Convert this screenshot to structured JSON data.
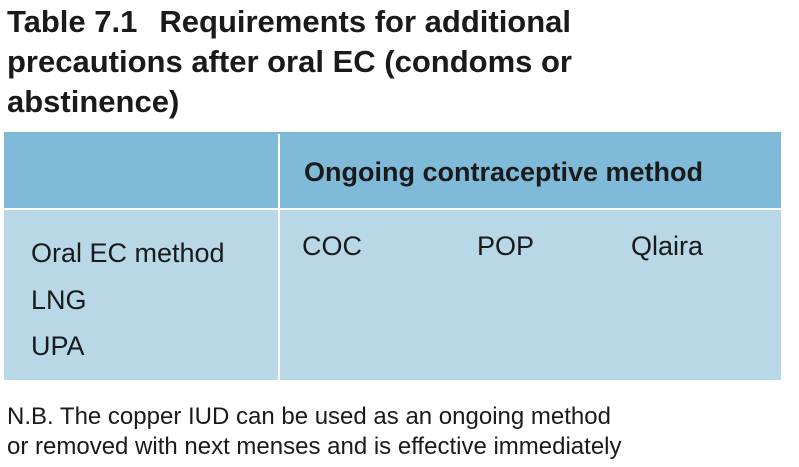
{
  "table": {
    "number": "Table 7.1",
    "title_lines": [
      "Requirements for additional",
      "precautions after oral EC (condoms or",
      "abstinence)"
    ],
    "header": "Ongoing contraceptive method",
    "row_header": "Oral EC method",
    "row_items": [
      "LNG",
      "UPA"
    ],
    "methods": [
      "COC",
      "POP",
      "Qlaira"
    ]
  },
  "note_lines": [
    "N.B. The copper IUD can be used as an ongoing method",
    "or removed with next menses and is effective immediately"
  ],
  "colors": {
    "header_bg": "#7fbad8",
    "body_bg": "#b8d8e8",
    "divider": "#ffffff"
  }
}
